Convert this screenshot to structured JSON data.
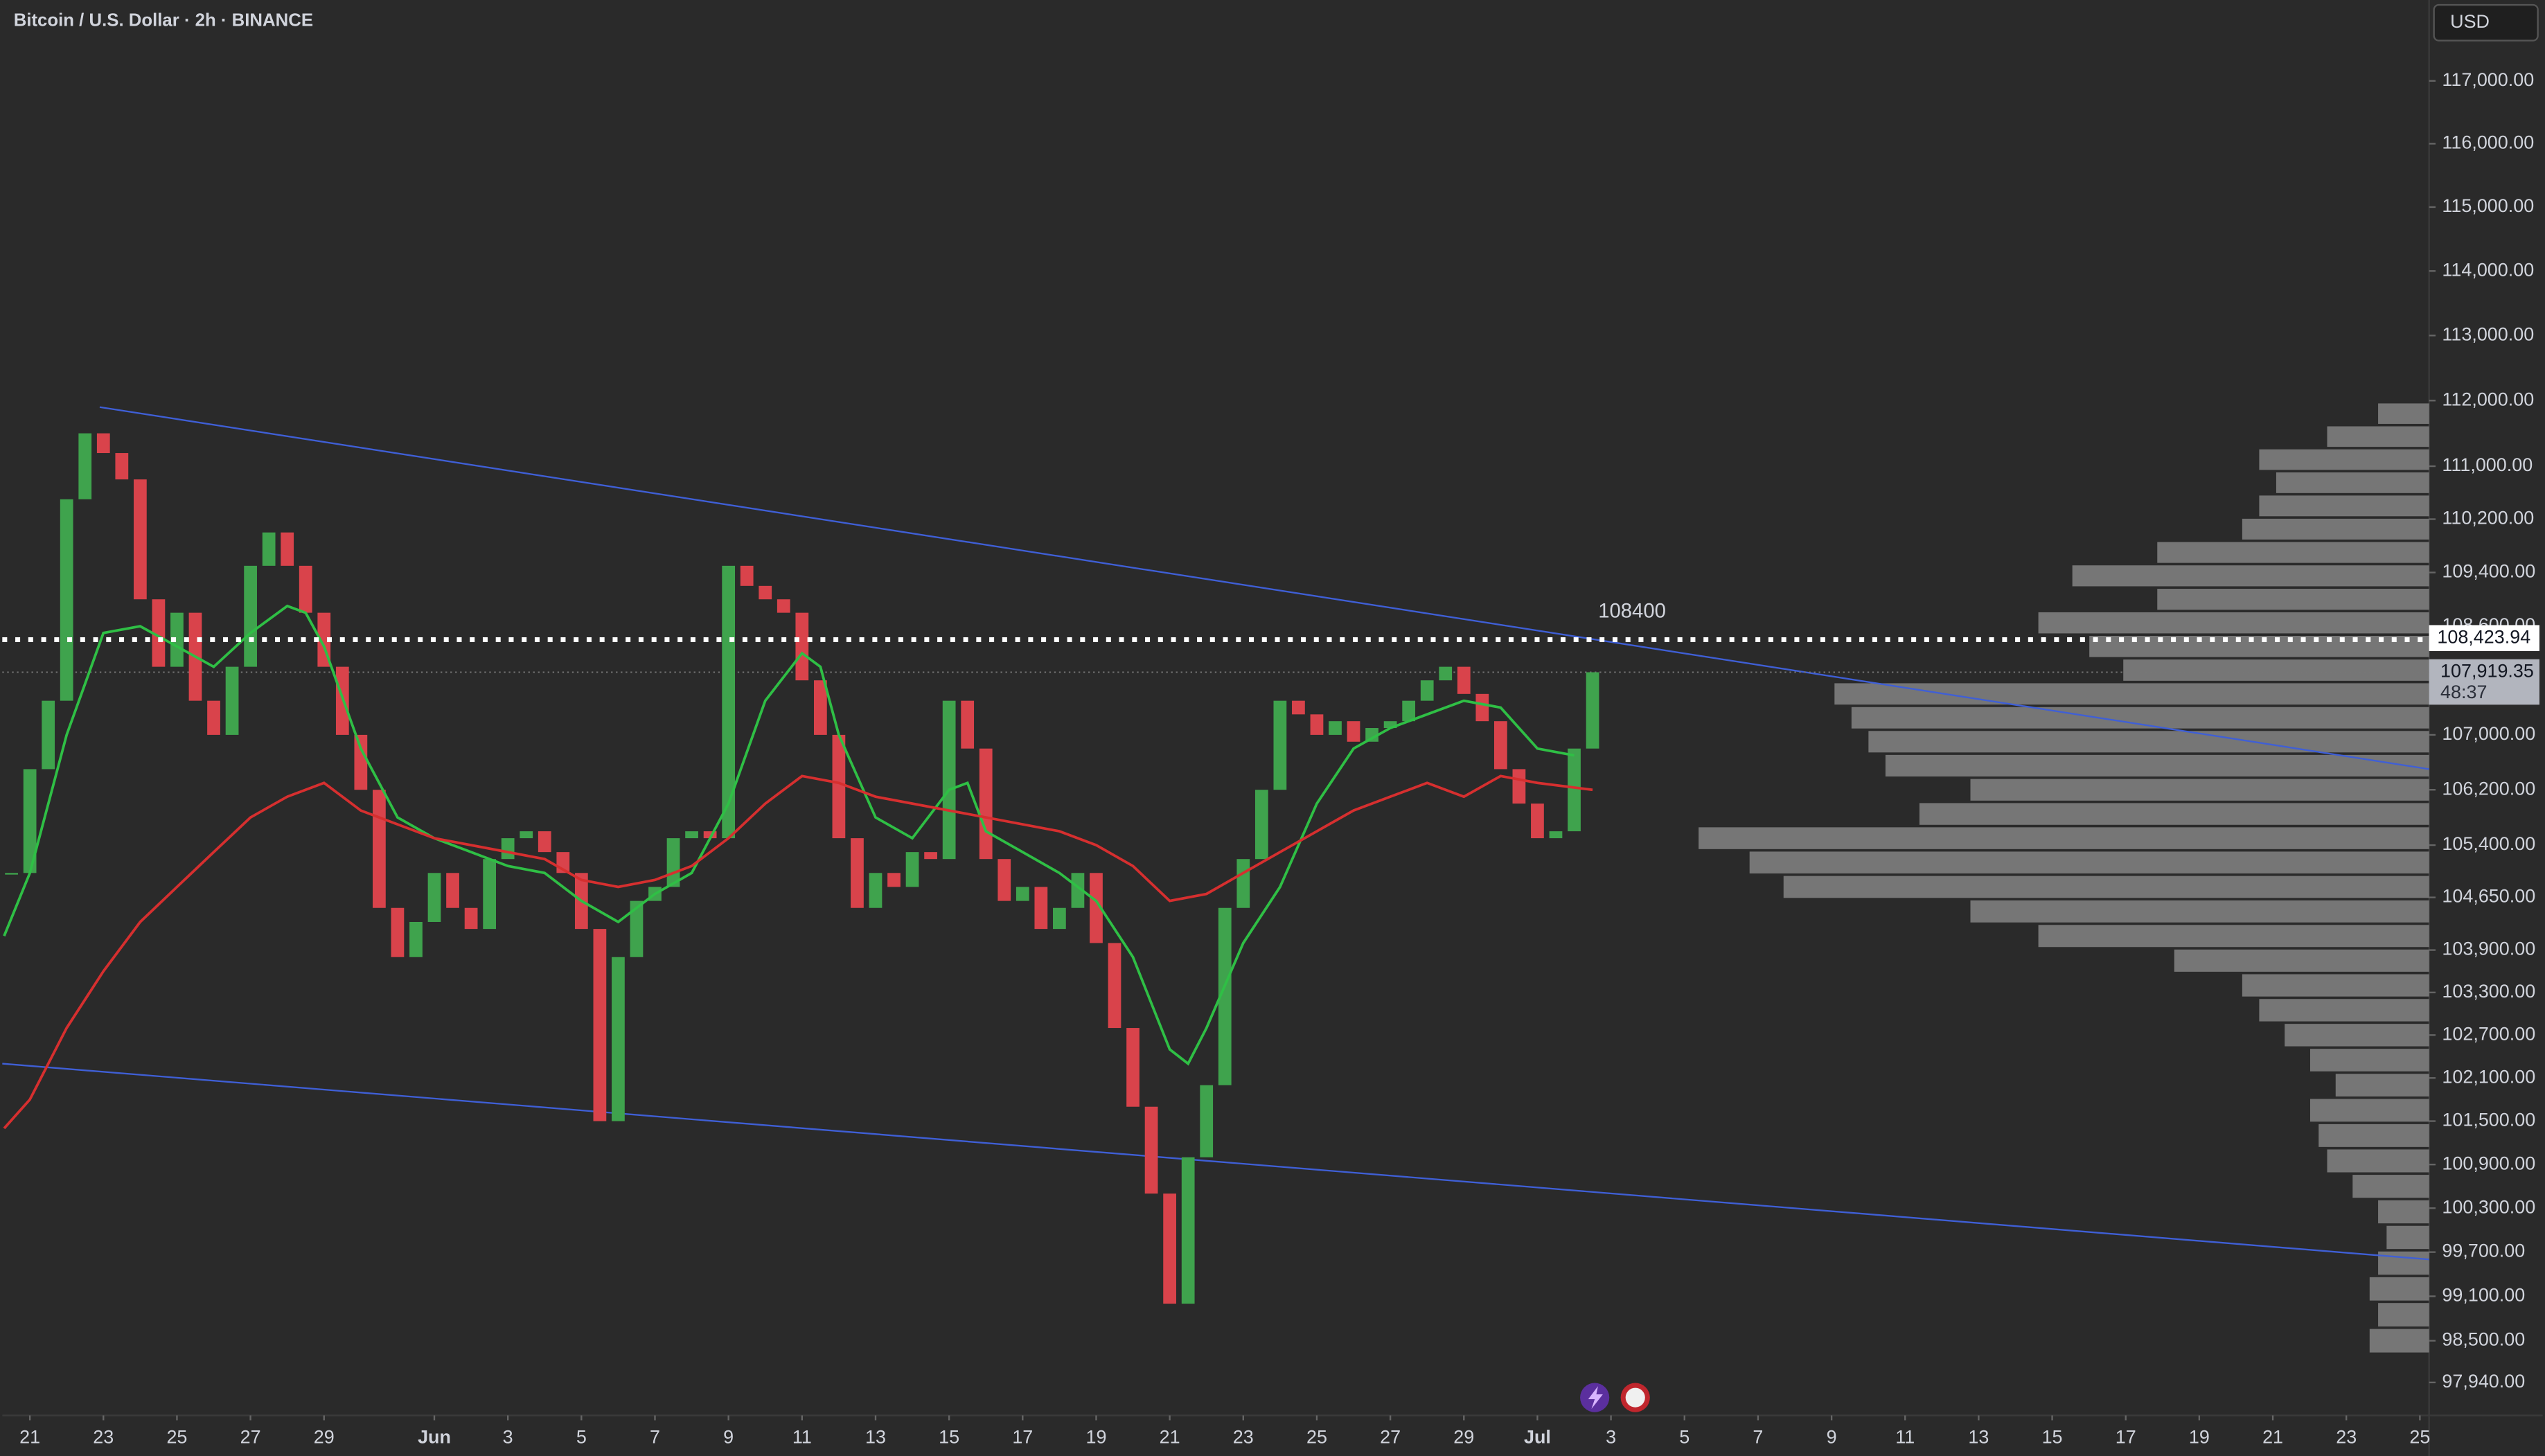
{
  "chart_data": {
    "type": "candlestick",
    "title": "Bitcoin / U.S. Dollar · 2h · BINANCE",
    "currency": "USD",
    "log_scale": true,
    "up_color": "#3fa34d",
    "down_color": "#d9434b",
    "x": [
      20.5,
      21,
      21.5,
      22,
      22.5,
      23,
      23.5,
      24,
      24.5,
      25,
      25.5,
      26,
      26.5,
      27,
      27.5,
      28,
      28.5,
      29,
      29.5,
      30,
      30.5,
      31,
      31.5,
      32,
      32.5,
      33,
      33.5,
      34,
      34.5,
      35,
      35.5,
      36,
      36.5,
      37,
      37.5,
      38,
      38.5,
      39,
      39.5,
      40,
      40.5,
      41,
      41.5,
      42,
      42.5,
      43,
      43.5,
      44,
      44.5,
      45,
      45.5,
      46,
      46.5,
      47,
      47.5,
      48,
      48.5,
      49,
      49.5,
      50,
      50.5,
      51,
      51.5,
      52,
      52.5,
      53,
      53.5,
      54,
      54.5,
      55,
      55.5,
      56,
      56.5,
      57,
      57.5,
      58,
      58.5,
      59,
      59.5,
      60,
      60.5,
      61,
      61.5,
      62,
      62.5,
      63,
      63.5
    ],
    "values": [
      105000,
      106500,
      107500,
      110500,
      111500,
      111200,
      110800,
      109000,
      108000,
      108800,
      107500,
      107000,
      108000,
      109500,
      110000,
      109500,
      108800,
      108000,
      107000,
      106200,
      104500,
      103800,
      104300,
      105000,
      104500,
      104200,
      105200,
      105500,
      105600,
      105300,
      105000,
      104200,
      101500,
      103800,
      104600,
      104800,
      105500,
      105600,
      105500,
      109500,
      109200,
      109000,
      108800,
      107800,
      107000,
      105500,
      104500,
      105000,
      104800,
      105300,
      105200,
      107500,
      106800,
      105200,
      104600,
      104800,
      104200,
      104500,
      105000,
      104000,
      102800,
      101700,
      100500,
      99000,
      101000,
      102000,
      104500,
      105200,
      106200,
      107500,
      107300,
      107000,
      107200,
      106900,
      107100,
      107200,
      107500,
      107800,
      108000,
      107600,
      107200,
      106500,
      106000,
      105500,
      105600,
      106800,
      107919.35
    ],
    "overlays": [
      {
        "color": "#2fbf45",
        "x": [
          20.3,
          21,
          22,
          23,
          24,
          25,
          26,
          27,
          28,
          28.5,
          29,
          30,
          31,
          32,
          33,
          34,
          35,
          36,
          37,
          38,
          39,
          40,
          41,
          42,
          42.5,
          43,
          44,
          45,
          46,
          46.5,
          47,
          48,
          49,
          50,
          51,
          52,
          52.5,
          53,
          54,
          55,
          56,
          57,
          58,
          59,
          60,
          61,
          62,
          63
        ],
        "values": [
          104100,
          105000,
          107000,
          108500,
          108600,
          108300,
          108000,
          108500,
          108900,
          108800,
          108300,
          106800,
          105800,
          105500,
          105300,
          105100,
          105000,
          104600,
          104300,
          104700,
          105000,
          106000,
          107500,
          108200,
          108000,
          107000,
          105800,
          105500,
          106200,
          106300,
          105600,
          105300,
          105000,
          104600,
          103800,
          102500,
          102300,
          102800,
          104000,
          104800,
          106000,
          106800,
          107100,
          107300,
          107500,
          107400,
          106800,
          106700
        ]
      },
      {
        "color": "#d62f2f",
        "x": [
          20.3,
          21,
          22,
          23,
          24,
          25,
          26,
          27,
          28,
          29,
          30,
          31,
          32,
          33,
          34,
          35,
          36,
          37,
          38,
          39,
          40,
          41,
          42,
          43,
          44,
          45,
          46,
          47,
          48,
          49,
          50,
          51,
          52,
          53,
          54,
          55,
          56,
          57,
          58,
          59,
          60,
          61,
          62,
          63.5
        ],
        "values": [
          101400,
          101800,
          102800,
          103600,
          104300,
          104800,
          105300,
          105800,
          106100,
          106300,
          105900,
          105700,
          105500,
          105400,
          105300,
          105200,
          104900,
          104800,
          104900,
          105100,
          105500,
          106000,
          106400,
          106300,
          106100,
          106000,
          105900,
          105800,
          105700,
          105600,
          105400,
          105100,
          104600,
          104700,
          105000,
          105300,
          105600,
          105900,
          106100,
          106300,
          106100,
          106400,
          106300,
          106200
        ]
      }
    ],
    "trendlines": [
      {
        "color": "#3f5fd6",
        "x": [
          22.9,
          86.25
        ],
        "y": [
          111900,
          106500
        ]
      },
      {
        "color": "#3f5fd6",
        "x": [
          20.25,
          86.25
        ],
        "y": [
          102300,
          99600
        ]
      }
    ],
    "hline": {
      "value": 108400,
      "color": "#ffffff"
    },
    "level_price": {
      "value": 108423.94,
      "label": "108,423.94"
    },
    "last_price": {
      "value": 107919.35,
      "label": "107,919.35",
      "countdown": "48:37"
    },
    "volume_profile": {
      "prices": [
        98500,
        98850,
        99200,
        99550,
        99900,
        100250,
        100600,
        100950,
        101300,
        101650,
        102000,
        102350,
        102700,
        103050,
        103400,
        103750,
        104100,
        104450,
        104800,
        105150,
        105500,
        105850,
        106200,
        106550,
        106900,
        107250,
        107600,
        107950,
        108300,
        108650,
        109000,
        109350,
        109700,
        110050,
        110400,
        110750,
        111100,
        111450,
        111800
      ],
      "volumes": [
        35,
        30,
        35,
        30,
        25,
        30,
        45,
        60,
        65,
        70,
        55,
        70,
        85,
        100,
        110,
        150,
        230,
        270,
        380,
        400,
        430,
        300,
        270,
        320,
        330,
        340,
        350,
        180,
        200,
        230,
        160,
        210,
        160,
        110,
        100,
        90,
        100,
        60,
        30
      ]
    },
    "xlim": [
      20.25,
      86.25
    ],
    "ylim": [
      97500,
      118300
    ],
    "xticks": [
      21,
      23,
      25,
      27,
      29,
      {
        "value": 32,
        "label": "Jun"
      },
      {
        "value": 34,
        "label": "3"
      },
      {
        "value": 36,
        "label": "5"
      },
      {
        "value": 38,
        "label": "7"
      },
      {
        "value": 40,
        "label": "9"
      },
      {
        "value": 42,
        "label": "11"
      },
      {
        "value": 44,
        "label": "13"
      },
      {
        "value": 46,
        "label": "15"
      },
      {
        "value": 48,
        "label": "17"
      },
      {
        "value": 50,
        "label": "19"
      },
      {
        "value": 52,
        "label": "21"
      },
      {
        "value": 54,
        "label": "23"
      },
      {
        "value": 56,
        "label": "25"
      },
      {
        "value": 58,
        "label": "27"
      },
      {
        "value": 60,
        "label": "29"
      },
      {
        "value": 62,
        "label": "Jul"
      },
      {
        "value": 64,
        "label": "3"
      },
      {
        "value": 66,
        "label": "5"
      },
      {
        "value": 68,
        "label": "7"
      },
      {
        "value": 70,
        "label": "9"
      },
      {
        "value": 72,
        "label": "11"
      },
      {
        "value": 74,
        "label": "13"
      },
      {
        "value": 76,
        "label": "15"
      },
      {
        "value": 78,
        "label": "17"
      },
      {
        "value": 80,
        "label": "19"
      },
      {
        "value": 82,
        "label": "21"
      },
      {
        "value": 84,
        "label": "23"
      },
      {
        "value": 86,
        "label": "25"
      }
    ],
    "yticks": [
      {
        "value": 117000,
        "label": "117,000.00"
      },
      {
        "value": 116000,
        "label": "116,000.00"
      },
      {
        "value": 115000,
        "label": "115,000.00"
      },
      {
        "value": 114000,
        "label": "114,000.00"
      },
      {
        "value": 113000,
        "label": "113,000.00"
      },
      {
        "value": 112000,
        "label": "112,000.00"
      },
      {
        "value": 111000,
        "label": "111,000.00"
      },
      {
        "value": 110200,
        "label": "110,200.00"
      },
      {
        "value": 109400,
        "label": "109,400.00"
      },
      {
        "value": 108600,
        "label": "108,600.00"
      },
      {
        "value": 107000,
        "label": "107,000.00"
      },
      {
        "value": 106200,
        "label": "106,200.00"
      },
      {
        "value": 105400,
        "label": "105,400.00"
      },
      {
        "value": 104650,
        "label": "104,650.00"
      },
      {
        "value": 103900,
        "label": "103,900.00"
      },
      {
        "value": 103300,
        "label": "103,300.00"
      },
      {
        "value": 102700,
        "label": "102,700.00"
      },
      {
        "value": 102100,
        "label": "102,100.00"
      },
      {
        "value": 101500,
        "label": "101,500.00"
      },
      {
        "value": 100900,
        "label": "100,900.00"
      },
      {
        "value": 100300,
        "label": "100,300.00"
      },
      {
        "value": 99700,
        "label": "99,700.00"
      },
      {
        "value": 99100,
        "label": "99,100.00"
      },
      {
        "value": 98500,
        "label": "98,500.00"
      },
      {
        "value": 97940,
        "label": "97,940.00"
      }
    ]
  }
}
